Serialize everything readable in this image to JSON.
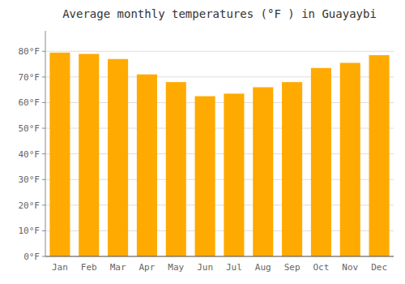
{
  "chart_data": {
    "type": "bar",
    "title": "Average monthly temperatures (°F ) in Guayaybi",
    "categories": [
      "Jan",
      "Feb",
      "Mar",
      "Apr",
      "May",
      "Jun",
      "Jul",
      "Aug",
      "Sep",
      "Oct",
      "Nov",
      "Dec"
    ],
    "values": [
      79.5,
      79.0,
      77.0,
      71.0,
      68.0,
      62.5,
      63.5,
      66.0,
      68.0,
      73.5,
      75.5,
      78.5
    ],
    "color": "#FFAA00",
    "ylim": [
      0,
      88
    ],
    "yticks": [
      {
        "value": 0,
        "label": "0°F"
      },
      {
        "value": 10,
        "label": "10°F"
      },
      {
        "value": 20,
        "label": "20°F"
      },
      {
        "value": 30,
        "label": "30°F"
      },
      {
        "value": 40,
        "label": "40°F"
      },
      {
        "value": 50,
        "label": "50°F"
      },
      {
        "value": 60,
        "label": "60°F"
      },
      {
        "value": 70,
        "label": "70°F"
      },
      {
        "value": 80,
        "label": "80°F"
      }
    ],
    "grid": true
  }
}
